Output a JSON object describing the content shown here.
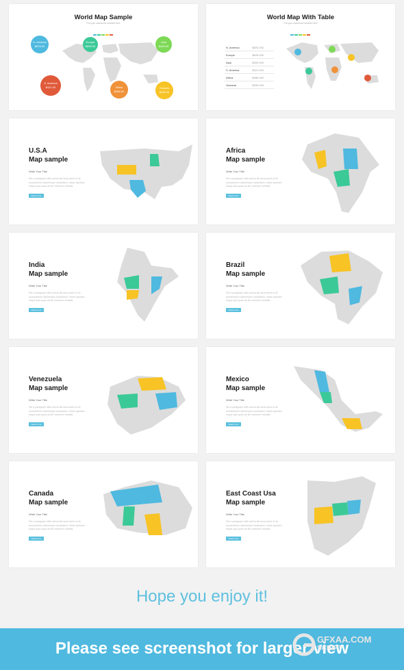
{
  "slides": {
    "world_map": {
      "title": "World Map Sample",
      "subtitle": "Put your awesome subtitle here",
      "bubbles": [
        {
          "label": "N. America",
          "value": "$876.00",
          "color": "#4fb9df"
        },
        {
          "label": "Europe",
          "value": "$699.00",
          "color": "#3cc998"
        },
        {
          "label": "Asia",
          "value": "$499.00",
          "color": "#7ed957"
        },
        {
          "label": "S. America",
          "value": "$421.00",
          "color": "#e05a3a"
        },
        {
          "label": "Africa",
          "value": "$386.00",
          "color": "#f0923a"
        },
        {
          "label": "Oceania",
          "value": "$330.00",
          "color": "#f7c325"
        }
      ]
    },
    "world_table": {
      "title": "World Map With Table",
      "subtitle": "Put your awesome subtitle here",
      "rows": [
        {
          "region": "N. America",
          "value": "$876.000"
        },
        {
          "region": "Europe",
          "value": "$699.000"
        },
        {
          "region": "Asia",
          "value": "$499.000"
        },
        {
          "region": "S. America",
          "value": "$421.000"
        },
        {
          "region": "Africa",
          "value": "$386.000"
        },
        {
          "region": "Oceania",
          "value": "$330.000"
        }
      ]
    },
    "common": {
      "write_title": "Write Your Title",
      "body": "Set a paragraph slide anima tila lacus amet ut sit accusantium doloremque laudantium, totam aperiam eaque ipsa quae ab illo inventore veritatis",
      "button": "Read more"
    },
    "usa": {
      "title_line1": "U.S.A",
      "title_line2": "Map sample"
    },
    "africa": {
      "title_line1": "Africa",
      "title_line2": "Map sample"
    },
    "india": {
      "title_line1": "India",
      "title_line2": "Map sample"
    },
    "brazil": {
      "title_line1": "Brazil",
      "title_line2": "Map sample"
    },
    "venezuela": {
      "title_line1": "Venezuela",
      "title_line2": "Map sample"
    },
    "mexico": {
      "title_line1": "Mexico",
      "title_line2": "Map sample"
    },
    "canada": {
      "title_line1": "Canada",
      "title_line2": "Map sample"
    },
    "east_coast": {
      "title_line1": "East Coast Usa",
      "title_line2": "Map sample"
    }
  },
  "footer": {
    "enjoy": "Hope you enjoy it!",
    "banner": "Please see screenshot for larger view",
    "watermark_line1": "GFXAA.COM",
    "watermark_line2": "SCRIPT"
  },
  "colors": {
    "accent_blue": "#4fb9df",
    "accent_green": "#3cc998",
    "accent_yellow": "#f7c325",
    "map_gray": "#dcdcdc"
  }
}
